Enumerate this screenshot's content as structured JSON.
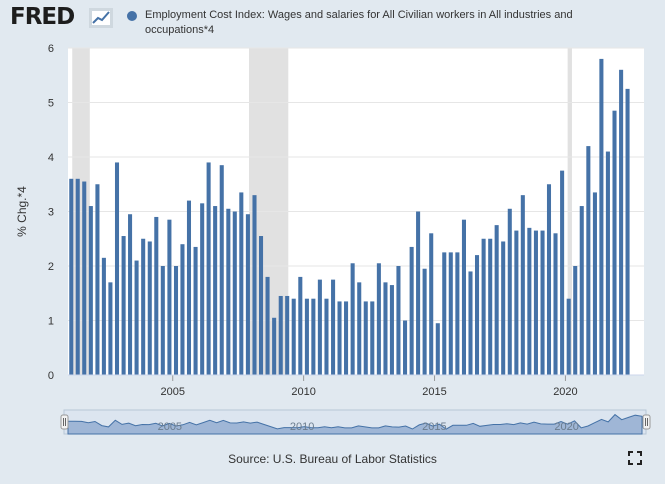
{
  "header": {
    "logo_text": "FRED",
    "logo_icon": "fred-graph-icon"
  },
  "legend": {
    "label": "Employment Cost Index: Wages and salaries for All Civilian workers in All industries and occupations*4",
    "color": "#4572a7"
  },
  "footer": {
    "source": "Source: U.S. Bureau of Labor Statistics",
    "fullscreen_icon": "fullscreen-icon"
  },
  "colors": {
    "background": "#e1e9f0",
    "plot_background": "#ffffff",
    "bar": "#4572a7",
    "recession": "#e1e1e1",
    "grid": "#e6e6e6"
  },
  "chart_data": {
    "type": "bar",
    "ylabel": "% Chg.*4",
    "ylim": [
      0,
      6
    ],
    "yticks": [
      0,
      1,
      2,
      3,
      4,
      5,
      6
    ],
    "xlim": [
      "2001-01-01",
      "2022-10-01"
    ],
    "xticks": [
      {
        "label": "2005",
        "date": "2005-01-01"
      },
      {
        "label": "2010",
        "date": "2010-01-01"
      },
      {
        "label": "2015",
        "date": "2015-01-01"
      },
      {
        "label": "2020",
        "date": "2020-01-01"
      }
    ],
    "grid": true,
    "recessions": [
      [
        "2001-03-01",
        "2001-11-01"
      ],
      [
        "2007-12-01",
        "2009-06-01"
      ],
      [
        "2020-02-01",
        "2020-04-01"
      ]
    ],
    "series": [
      {
        "start": "2001-01",
        "frequency": "quarterly",
        "values": [
          3.6,
          3.6,
          3.55,
          3.1,
          3.5,
          2.15,
          1.7,
          3.9,
          2.55,
          2.95,
          2.1,
          2.5,
          2.45,
          2.9,
          2.0,
          2.85,
          2.0,
          2.4,
          3.2,
          2.35,
          3.15,
          3.9,
          3.1,
          3.85,
          3.05,
          3.0,
          3.35,
          2.95,
          3.3,
          2.55,
          1.8,
          1.05,
          1.45,
          1.45,
          1.4,
          1.8,
          1.4,
          1.4,
          1.75,
          1.4,
          1.75,
          1.35,
          1.35,
          2.05,
          1.7,
          1.35,
          1.35,
          2.05,
          1.7,
          1.65,
          2.0,
          1.0,
          2.35,
          3.0,
          1.95,
          2.6,
          0.95,
          2.25,
          2.25,
          2.25,
          2.85,
          1.9,
          2.2,
          2.5,
          2.5,
          2.75,
          2.45,
          3.05,
          2.65,
          3.3,
          2.7,
          2.65,
          2.65,
          3.5,
          2.6,
          3.75,
          1.4,
          2.0,
          3.1,
          4.2,
          3.35,
          5.8,
          4.1,
          4.85,
          5.6,
          5.25
        ]
      }
    ]
  },
  "navigator": {
    "labels": [
      "2005",
      "2010",
      "2015",
      "2020"
    ]
  }
}
